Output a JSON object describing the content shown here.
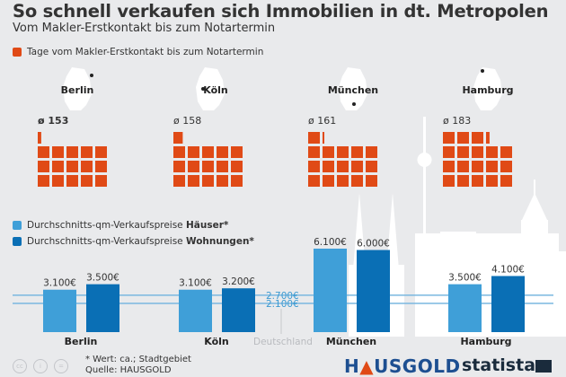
{
  "header": {
    "title": "So schnell verkaufen sich Immobilien in dt. Metropolen",
    "subtitle": "Vom Makler-Erstkontakt bis zum Notartermin"
  },
  "colors": {
    "days": "#e04a16",
    "houses": "#3f9fd8",
    "apartments": "#0a6fb5",
    "reference_line": "#7ab8e0",
    "background": "#e9eaec",
    "silhouette": "#ffffff"
  },
  "chart_data": [
    {
      "type": "pictogram",
      "title": "Tage vom Makler-Erstkontakt bis zum Notartermin",
      "legend": "Tage vom Makler-Erstkontakt bis zum Notartermin",
      "unit_per_square": 10,
      "squares_per_row": 5,
      "categories": [
        "Berlin",
        "Köln",
        "München",
        "Hamburg"
      ],
      "values": [
        153,
        158,
        161,
        183
      ],
      "value_labels": [
        "ø 153",
        "ø 158",
        "ø 161",
        "ø 183"
      ],
      "highlighted": "Berlin"
    },
    {
      "type": "bar",
      "title": "Durchschnitts-qm-Verkaufspreise",
      "categories": [
        "Berlin",
        "Köln",
        "München",
        "Hamburg"
      ],
      "series": [
        {
          "name": "Häuser",
          "legend_prefix": "Durchschnitts-qm-Verkaufspreise ",
          "legend_bold": "Häuser*",
          "values": [
            3100,
            3100,
            6100,
            3500
          ],
          "labels": [
            "3.100€",
            "3.100€",
            "6.100€",
            "3.500€"
          ]
        },
        {
          "name": "Wohnungen",
          "legend_prefix": "Durchschnitts-qm-Verkaufspreise ",
          "legend_bold": "Wohnungen*",
          "values": [
            3500,
            3200,
            6000,
            4100
          ],
          "labels": [
            "3.500€",
            "3.200€",
            "6.000€",
            "4.100€"
          ]
        }
      ],
      "reference_lines": [
        {
          "name": "Deutschland Wohnungen",
          "value": 2700,
          "label": "2.700€"
        },
        {
          "name": "Deutschland Häuser",
          "value": 2100,
          "label": "2.100€"
        }
      ],
      "reference_caption": "Deutschland",
      "ylim": [
        0,
        6100
      ],
      "unit": "€ pro qm"
    }
  ],
  "footer": {
    "footnote": "* Wert: ca.; Stadtgebiet",
    "source": "Quelle: HAUSGOLD",
    "license_icons": [
      "cc",
      "by",
      "nd"
    ],
    "logo_hausgold": {
      "pre": "H",
      "roof": "▲",
      "post": "USGOLD"
    },
    "logo_statista": "statista"
  }
}
